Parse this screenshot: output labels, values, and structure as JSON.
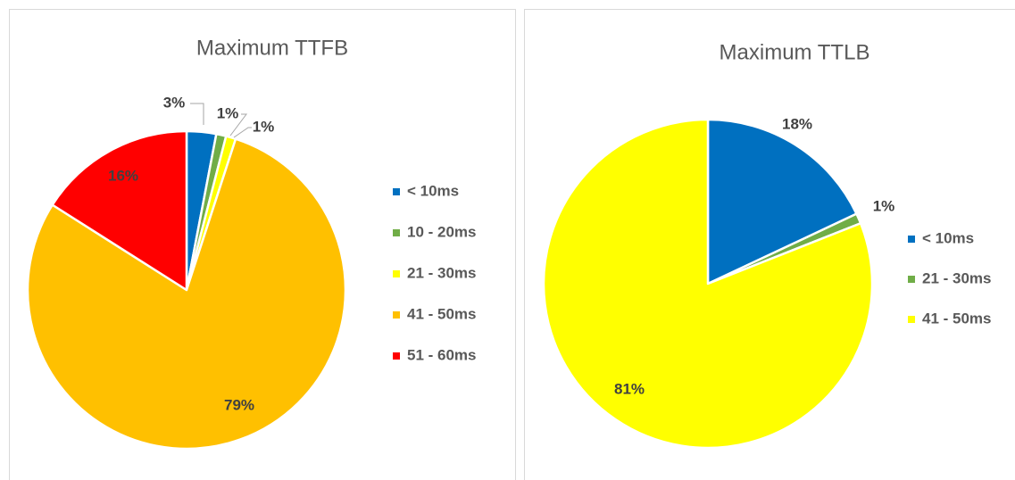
{
  "chart_data": [
    {
      "type": "pie",
      "title": "Maximum TTFB",
      "categories": [
        "< 10ms",
        "10 - 20ms",
        "21 - 30ms",
        "41 - 50ms",
        "51 - 60ms"
      ],
      "values": [
        3,
        1,
        1,
        79,
        16
      ],
      "value_labels": [
        "3%",
        "1%",
        "1%",
        "79%",
        "16%"
      ],
      "colors": [
        "#0070c0",
        "#70ad47",
        "#ffff00",
        "#ffc000",
        "#ff0000"
      ],
      "legend": "right"
    },
    {
      "type": "pie",
      "title": "Maximum TTLB",
      "categories": [
        "< 10ms",
        "21 - 30ms",
        "41 - 50ms"
      ],
      "values": [
        18,
        1,
        81
      ],
      "value_labels": [
        "18%",
        "1%",
        "81%"
      ],
      "colors": [
        "#0070c0",
        "#70ad47",
        "#ffff00"
      ],
      "legend": "right"
    }
  ]
}
